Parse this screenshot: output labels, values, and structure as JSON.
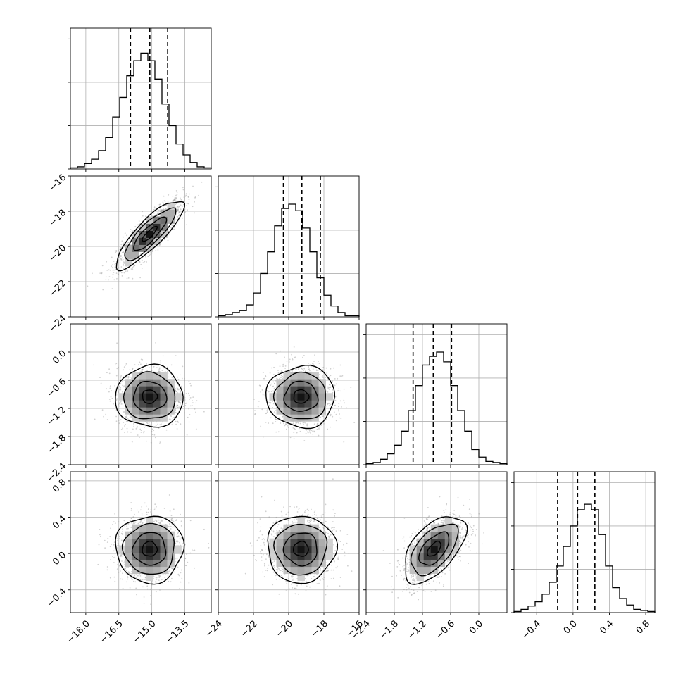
{
  "chart_data": {
    "type": "corner",
    "ylim_hist": [
      0,
      1.3
    ],
    "hist_yticks": [
      0.0,
      0.4,
      0.8,
      1.2
    ],
    "parameters": [
      {
        "range": [
          -18.7,
          -12.3
        ],
        "ticks": [
          "−18.0",
          "−16.5",
          "−15.0",
          "−13.5"
        ],
        "tick_values": [
          -18.0,
          -16.5,
          -15.0,
          -13.5
        ],
        "quantiles": [
          -15.97,
          -15.09,
          -14.28
        ],
        "hist_values": [
          0.01,
          0.02,
          0.05,
          0.09,
          0.17,
          0.29,
          0.48,
          0.66,
          0.86,
          1.0,
          1.07,
          1.0,
          0.83,
          0.6,
          0.4,
          0.23,
          0.13,
          0.06,
          0.02,
          0.01
        ]
      },
      {
        "range": [
          -24.0,
          -16.0
        ],
        "ticks": [
          "−24",
          "−22",
          "−20",
          "−18",
          "−16"
        ],
        "tick_values": [
          -24,
          -22,
          -20,
          -18,
          -16
        ],
        "quantiles": [
          -20.3,
          -19.25,
          -18.2
        ],
        "hist_values": [
          0.01,
          0.02,
          0.04,
          0.06,
          0.11,
          0.22,
          0.4,
          0.6,
          0.84,
          1.0,
          1.04,
          0.98,
          0.82,
          0.6,
          0.36,
          0.2,
          0.1,
          0.04,
          0.01,
          0.01
        ]
      },
      {
        "range": [
          -2.4,
          0.6
        ],
        "ticks": [
          "−2.4",
          "−1.8",
          "−1.2",
          "−0.6",
          "0.0"
        ],
        "tick_values": [
          -2.4,
          -1.8,
          -1.2,
          -0.6,
          0.0
        ],
        "quantiles": [
          -1.4,
          -0.97,
          -0.58
        ],
        "hist_values": [
          0.01,
          0.02,
          0.05,
          0.1,
          0.18,
          0.31,
          0.5,
          0.73,
          0.92,
          1.0,
          1.04,
          0.95,
          0.73,
          0.5,
          0.31,
          0.14,
          0.07,
          0.03,
          0.02,
          0.01
        ]
      },
      {
        "range": [
          -0.65,
          0.9
        ],
        "ticks": [
          "−0.4",
          "0.0",
          "0.4",
          "0.8"
        ],
        "tick_values": [
          -0.4,
          0.0,
          0.4,
          0.8
        ],
        "quantiles": [
          -0.17,
          0.05,
          0.24
        ],
        "hist_values": [
          0.01,
          0.03,
          0.06,
          0.1,
          0.17,
          0.28,
          0.43,
          0.61,
          0.8,
          0.95,
          1.0,
          0.95,
          0.72,
          0.43,
          0.23,
          0.13,
          0.07,
          0.03,
          0.02,
          0.01
        ]
      }
    ],
    "pairs": [
      {
        "row": 1,
        "col": 0,
        "mean": [
          -15.1,
          -19.3
        ],
        "std": [
          0.75,
          0.95
        ],
        "corr": 0.85
      },
      {
        "row": 2,
        "col": 0,
        "mean": [
          -15.1,
          -0.95
        ],
        "std": [
          0.75,
          0.32
        ],
        "corr": 0.0
      },
      {
        "row": 2,
        "col": 1,
        "mean": [
          -19.3,
          -0.95
        ],
        "std": [
          0.95,
          0.32
        ],
        "corr": 0.0
      },
      {
        "row": 3,
        "col": 0,
        "mean": [
          -15.1,
          0.05
        ],
        "std": [
          0.75,
          0.18
        ],
        "corr": 0.0
      },
      {
        "row": 3,
        "col": 1,
        "mean": [
          -19.3,
          0.05
        ],
        "std": [
          0.95,
          0.18
        ],
        "corr": 0.0
      },
      {
        "row": 3,
        "col": 2,
        "mean": [
          -0.95,
          0.05
        ],
        "std": [
          0.32,
          0.18
        ],
        "corr": 0.55
      }
    ],
    "grid": true,
    "colors": {
      "ink": "#000000",
      "grid": "#b0b0b0",
      "points": "#9a9a9a"
    }
  }
}
